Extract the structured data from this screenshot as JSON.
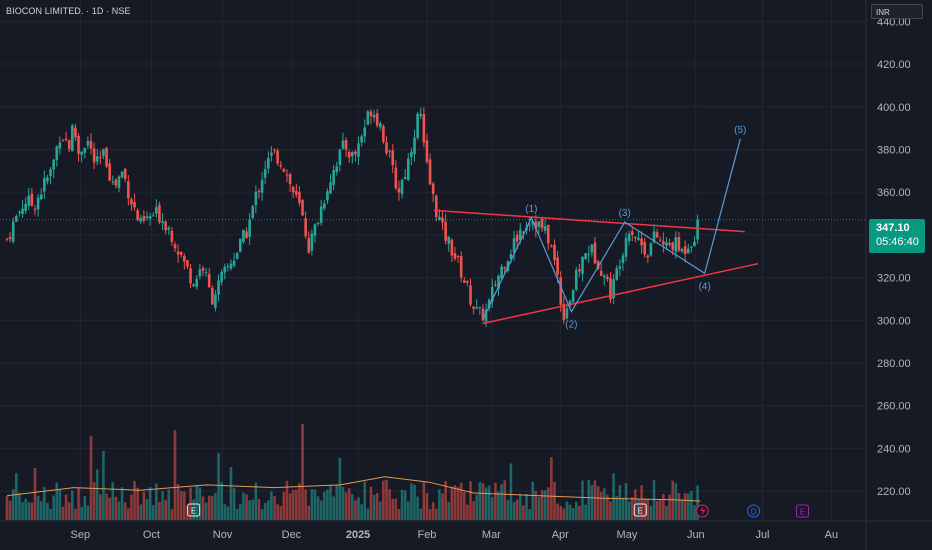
{
  "header": {
    "symbol": "BIOCON LIMITED. · 1D · NSE",
    "currency": "INR"
  },
  "last_price": {
    "price": "347.10",
    "countdown": "05:46:40"
  },
  "colors": {
    "up": "#26a69a",
    "down": "#ef5350",
    "wave": "#5b9bd5",
    "trendline": "#f23645",
    "background": "#161a25",
    "volume_ma": "#e09a55"
  },
  "chart_data": {
    "type": "candlestick",
    "title": "BIOCON LIMITED. · 1D · NSE",
    "ylim": [
      206,
      450
    ],
    "y_ticks": [
      "440.00",
      "420.00",
      "400.00",
      "380.00",
      "360.00",
      "340.00",
      "320.00",
      "300.00",
      "280.00",
      "260.00",
      "240.00",
      "220.00"
    ],
    "x_ticks": [
      {
        "label": "Sep",
        "day": 33
      },
      {
        "label": "Oct",
        "day": 65
      },
      {
        "label": "Nov",
        "day": 97
      },
      {
        "label": "Dec",
        "day": 128
      },
      {
        "label": "2025",
        "day": 158
      },
      {
        "label": "Feb",
        "day": 189
      },
      {
        "label": "Mar",
        "day": 218
      },
      {
        "label": "Apr",
        "day": 249
      },
      {
        "label": "May",
        "day": 279
      },
      {
        "label": "Jun",
        "day": 310
      },
      {
        "label": "Jul",
        "day": 340
      },
      {
        "label": "Au",
        "day": 371
      }
    ],
    "closes": [
      {
        "day": 0,
        "close": 338
      },
      {
        "day": 4,
        "close": 348
      },
      {
        "day": 8,
        "close": 356
      },
      {
        "day": 12,
        "close": 354
      },
      {
        "day": 16,
        "close": 362
      },
      {
        "day": 20,
        "close": 370
      },
      {
        "day": 24,
        "close": 388
      },
      {
        "day": 28,
        "close": 382
      },
      {
        "day": 30,
        "close": 392
      },
      {
        "day": 32,
        "close": 378
      },
      {
        "day": 36,
        "close": 385
      },
      {
        "day": 40,
        "close": 372
      },
      {
        "day": 44,
        "close": 378
      },
      {
        "day": 48,
        "close": 362
      },
      {
        "day": 52,
        "close": 370
      },
      {
        "day": 56,
        "close": 356
      },
      {
        "day": 60,
        "close": 344
      },
      {
        "day": 64,
        "close": 348
      },
      {
        "day": 68,
        "close": 350
      },
      {
        "day": 72,
        "close": 345
      },
      {
        "day": 76,
        "close": 336
      },
      {
        "day": 80,
        "close": 326
      },
      {
        "day": 84,
        "close": 318
      },
      {
        "day": 88,
        "close": 326
      },
      {
        "day": 92,
        "close": 310
      },
      {
        "day": 96,
        "close": 318
      },
      {
        "day": 100,
        "close": 326
      },
      {
        "day": 104,
        "close": 333
      },
      {
        "day": 108,
        "close": 342
      },
      {
        "day": 112,
        "close": 358
      },
      {
        "day": 116,
        "close": 372
      },
      {
        "day": 120,
        "close": 378
      },
      {
        "day": 124,
        "close": 374
      },
      {
        "day": 128,
        "close": 362
      },
      {
        "day": 132,
        "close": 352
      },
      {
        "day": 136,
        "close": 334
      },
      {
        "day": 140,
        "close": 348
      },
      {
        "day": 144,
        "close": 362
      },
      {
        "day": 148,
        "close": 374
      },
      {
        "day": 152,
        "close": 382
      },
      {
        "day": 156,
        "close": 376
      },
      {
        "day": 160,
        "close": 388
      },
      {
        "day": 164,
        "close": 400
      },
      {
        "day": 168,
        "close": 392
      },
      {
        "day": 172,
        "close": 376
      },
      {
        "day": 176,
        "close": 360
      },
      {
        "day": 180,
        "close": 372
      },
      {
        "day": 184,
        "close": 392
      },
      {
        "day": 186,
        "close": 398
      },
      {
        "day": 188,
        "close": 376
      },
      {
        "day": 192,
        "close": 356
      },
      {
        "day": 196,
        "close": 342
      },
      {
        "day": 200,
        "close": 334
      },
      {
        "day": 204,
        "close": 324
      },
      {
        "day": 208,
        "close": 312
      },
      {
        "day": 212,
        "close": 302
      },
      {
        "day": 216,
        "close": 304
      },
      {
        "day": 220,
        "close": 318
      },
      {
        "day": 224,
        "close": 328
      },
      {
        "day": 228,
        "close": 336
      },
      {
        "day": 232,
        "close": 344
      },
      {
        "day": 236,
        "close": 348
      },
      {
        "day": 240,
        "close": 344
      },
      {
        "day": 244,
        "close": 338
      },
      {
        "day": 248,
        "close": 320
      },
      {
        "day": 250,
        "close": 302
      },
      {
        "day": 254,
        "close": 312
      },
      {
        "day": 258,
        "close": 326
      },
      {
        "day": 262,
        "close": 334
      },
      {
        "day": 266,
        "close": 328
      },
      {
        "day": 270,
        "close": 318
      },
      {
        "day": 272,
        "close": 312
      },
      {
        "day": 276,
        "close": 330
      },
      {
        "day": 280,
        "close": 344
      },
      {
        "day": 284,
        "close": 338
      },
      {
        "day": 288,
        "close": 332
      },
      {
        "day": 292,
        "close": 340
      },
      {
        "day": 296,
        "close": 334
      },
      {
        "day": 300,
        "close": 336
      },
      {
        "day": 304,
        "close": 332
      },
      {
        "day": 307,
        "close": 337
      },
      {
        "day": 310,
        "close": 340
      },
      {
        "day": 312,
        "close": 347.1
      }
    ],
    "volume_ma": [
      {
        "day": 0,
        "v": 0.18
      },
      {
        "day": 30,
        "v": 0.24
      },
      {
        "day": 60,
        "v": 0.22
      },
      {
        "day": 90,
        "v": 0.26
      },
      {
        "day": 120,
        "v": 0.24
      },
      {
        "day": 150,
        "v": 0.26
      },
      {
        "day": 170,
        "v": 0.32
      },
      {
        "day": 190,
        "v": 0.28
      },
      {
        "day": 210,
        "v": 0.2
      },
      {
        "day": 240,
        "v": 0.18
      },
      {
        "day": 270,
        "v": 0.16
      },
      {
        "day": 300,
        "v": 0.15
      },
      {
        "day": 312,
        "v": 0.14
      }
    ],
    "trendlines": [
      {
        "from": {
          "day": 192,
          "price": 351.5
        },
        "to": {
          "day": 332,
          "price": 341.5
        }
      },
      {
        "from": {
          "day": 214,
          "price": 298.5
        },
        "to": {
          "day": 338,
          "price": 326.5
        }
      }
    ],
    "elliott_wave": [
      {
        "label": "",
        "day": 214,
        "price": 300
      },
      {
        "label": "(1)",
        "day": 236,
        "price": 348
      },
      {
        "label": "(2)",
        "day": 254,
        "price": 304
      },
      {
        "label": "(3)",
        "day": 278,
        "price": 346
      },
      {
        "label": "(4)",
        "day": 314,
        "price": 322
      },
      {
        "label": "(5)",
        "day": 330,
        "price": 385
      }
    ],
    "event_markers": [
      {
        "label": "E",
        "day": 84,
        "row": "volume"
      },
      {
        "label": "E",
        "day": 285,
        "row": "volume"
      },
      {
        "label": "D",
        "day": 336,
        "row": "axis"
      },
      {
        "label": "E",
        "day": 358,
        "row": "axis"
      }
    ]
  }
}
